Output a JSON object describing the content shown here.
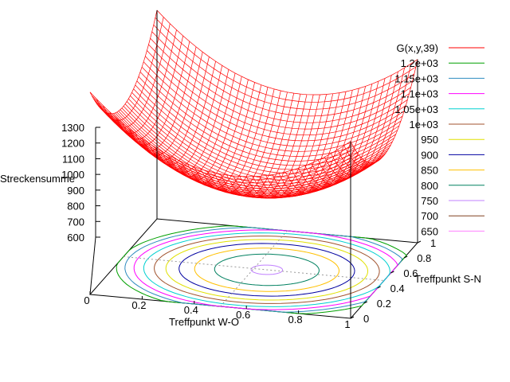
{
  "chart_data": {
    "type": "surface3d",
    "title": "",
    "zlabel": "Streckensumme",
    "xlabel": "Treffpunkt W-O",
    "ylabel": "Treffpunkt S-N",
    "x_ticks": [
      "0",
      "0.2",
      "0.4",
      "0.6",
      "0.8",
      "1"
    ],
    "y_ticks": [
      "0",
      "0.2",
      "0.4",
      "0.6",
      "0.8",
      "1"
    ],
    "z_ticks": [
      "600",
      "700",
      "800",
      "900",
      "1000",
      "1100",
      "1200",
      "1300"
    ],
    "xlim": [
      0,
      1
    ],
    "ylim": [
      0,
      1
    ],
    "zlim": [
      600,
      1300
    ],
    "surface": {
      "name": "G(x,y,39)",
      "color": "#ff0000",
      "corner_values": {
        "x0_y0": 1230,
        "x0_y1": 1290,
        "x1_y0": 1205,
        "x1_y1": 1285
      },
      "minimum": {
        "x": 0.55,
        "y": 0.5,
        "z": 745
      }
    },
    "contour_levels": [
      {
        "label": "1.2e+03",
        "value": 1200,
        "color": "#00a000"
      },
      {
        "label": "1.15e+03",
        "value": 1150,
        "color": "#2e8bc0"
      },
      {
        "label": "1.1e+03",
        "value": 1100,
        "color": "#ff00ff"
      },
      {
        "label": "1.05e+03",
        "value": 1050,
        "color": "#00d0d0"
      },
      {
        "label": "1e+03",
        "value": 1000,
        "color": "#a0522d"
      },
      {
        "label": "950",
        "value": 950,
        "color": "#e0e000"
      },
      {
        "label": "900",
        "value": 900,
        "color": "#0000a0"
      },
      {
        "label": "850",
        "value": 850,
        "color": "#ffc000"
      },
      {
        "label": "800",
        "value": 800,
        "color": "#008060"
      },
      {
        "label": "750",
        "value": 750,
        "color": "#c080ff"
      },
      {
        "label": "700",
        "value": 700,
        "color": "#804020"
      },
      {
        "label": "650",
        "value": 650,
        "color": "#ff80ff"
      }
    ]
  }
}
